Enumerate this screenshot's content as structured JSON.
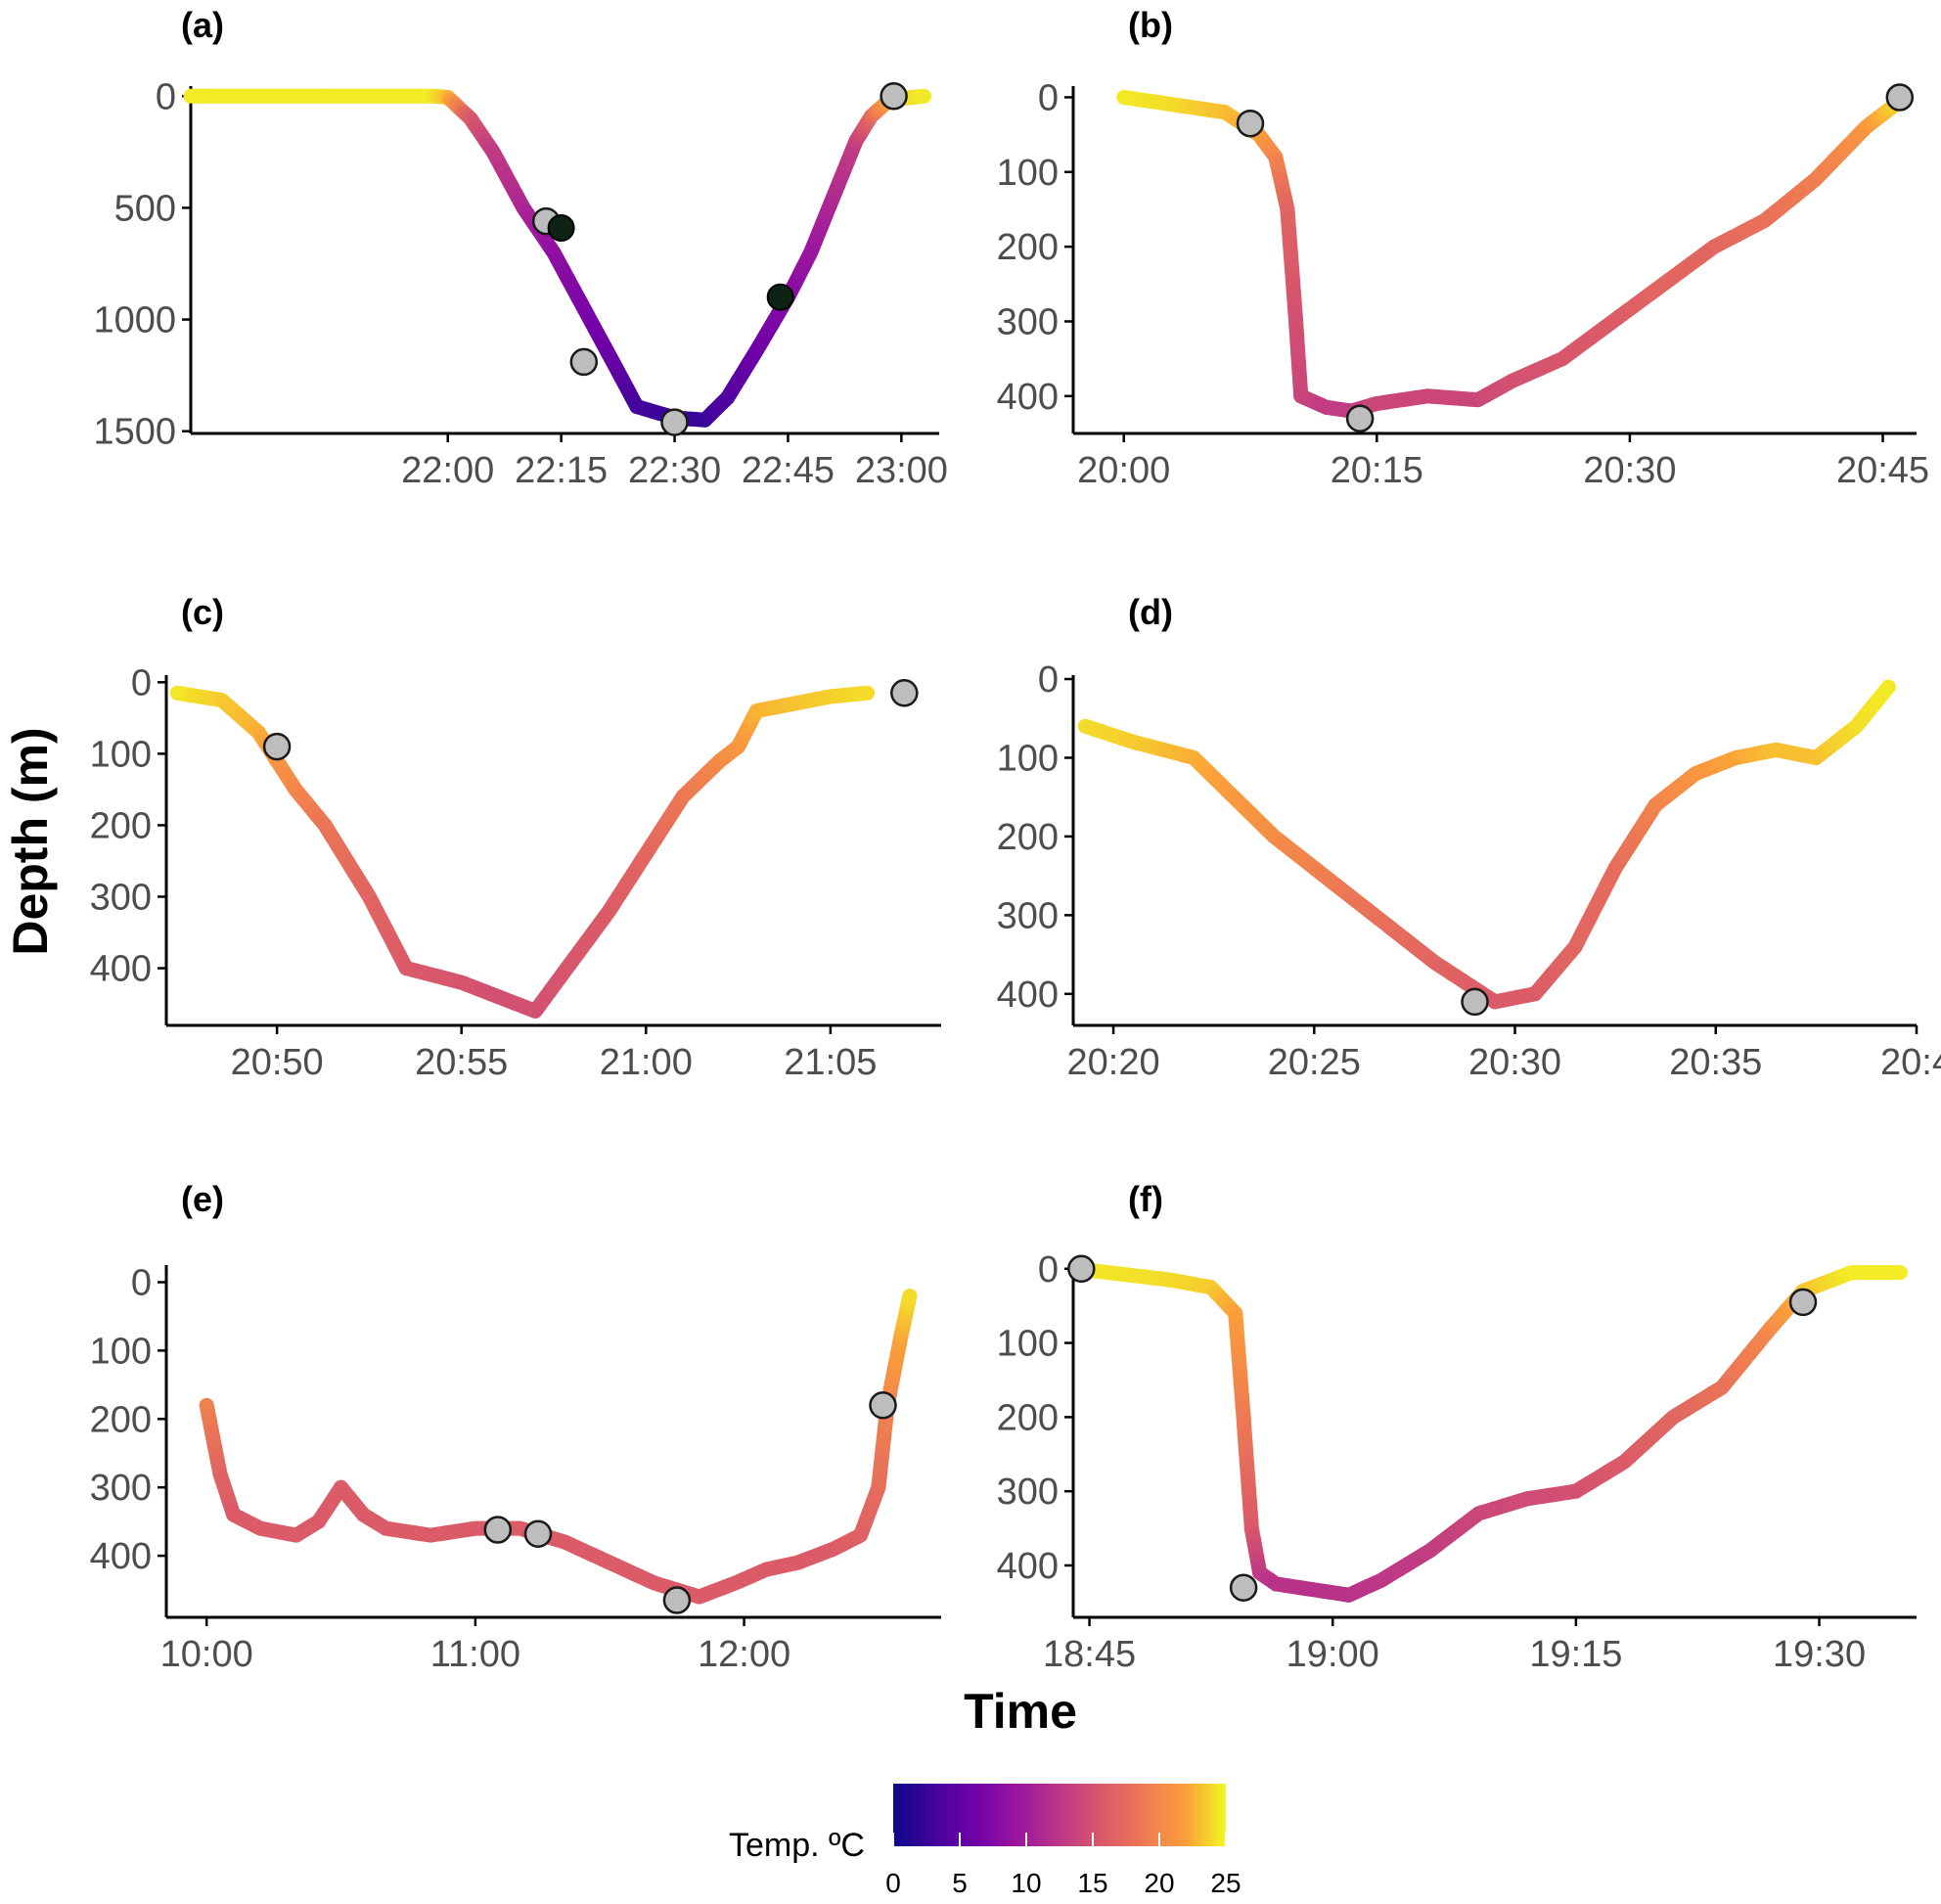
{
  "figure": {
    "xlabel": "Time",
    "ylabel": "Depth (m)"
  },
  "legend": {
    "title": "Temp. ºC",
    "ticks": [
      "0",
      "5",
      "10",
      "15",
      "20",
      "25"
    ]
  },
  "chart_data": [
    {
      "label": "(a)",
      "type": "line",
      "color_by": "temperature",
      "x_ticks": [
        "22:00",
        "22:15",
        "22:30",
        "22:45",
        "23:00"
      ],
      "x_tick_min": [
        1320,
        1335,
        1350,
        1365,
        1380
      ],
      "xlim": [
        1286,
        1385
      ],
      "y_ticks": [
        "0",
        "500",
        "1000",
        "1500"
      ],
      "y_tick_vals": [
        0,
        500,
        1000,
        1500
      ],
      "ylim": [
        -45,
        1510
      ],
      "series": [
        [
          1286,
          0,
          24.5
        ],
        [
          1300,
          0,
          24.5
        ],
        [
          1318,
          0,
          24.5
        ],
        [
          1320,
          5,
          23
        ],
        [
          1323,
          100,
          16
        ],
        [
          1326,
          250,
          13
        ],
        [
          1330,
          500,
          11
        ],
        [
          1334,
          700,
          8.5
        ],
        [
          1338,
          950,
          7
        ],
        [
          1342,
          1200,
          5.5
        ],
        [
          1345,
          1390,
          3.5
        ],
        [
          1350,
          1440,
          2.5
        ],
        [
          1354,
          1450,
          2.5
        ],
        [
          1357,
          1350,
          4
        ],
        [
          1361,
          1130,
          6
        ],
        [
          1365,
          900,
          7.5
        ],
        [
          1368,
          700,
          9
        ],
        [
          1371,
          450,
          11
        ],
        [
          1374,
          200,
          13
        ],
        [
          1376,
          90,
          17
        ],
        [
          1378,
          30,
          21
        ],
        [
          1380,
          10,
          23.5
        ],
        [
          1383,
          0,
          24.5
        ]
      ],
      "gray_markers": [
        [
          1333,
          560
        ],
        [
          1338,
          1190
        ],
        [
          1350,
          1460
        ],
        [
          1379,
          0
        ]
      ],
      "dark_markers": [
        [
          1335,
          590
        ],
        [
          1364,
          900
        ]
      ]
    },
    {
      "label": "(b)",
      "type": "line",
      "color_by": "temperature",
      "x_ticks": [
        "20:00",
        "20:15",
        "20:30",
        "20:45"
      ],
      "x_tick_min": [
        1200,
        1215,
        1230,
        1245
      ],
      "xlim": [
        1197,
        1247
      ],
      "y_ticks": [
        "0",
        "100",
        "200",
        "300",
        "400"
      ],
      "y_tick_vals": [
        0,
        100,
        200,
        300,
        400
      ],
      "ylim": [
        -15,
        450
      ],
      "series": [
        [
          1200,
          0,
          24.5
        ],
        [
          1203,
          10,
          24
        ],
        [
          1206,
          20,
          23
        ],
        [
          1208,
          50,
          22
        ],
        [
          1209,
          80,
          20
        ],
        [
          1209.7,
          150,
          17
        ],
        [
          1210.2,
          300,
          15
        ],
        [
          1210.5,
          400,
          14
        ],
        [
          1212,
          415,
          13
        ],
        [
          1213.5,
          420,
          13
        ],
        [
          1215,
          410,
          14
        ],
        [
          1218,
          400,
          14
        ],
        [
          1221,
          405,
          14
        ],
        [
          1223,
          380,
          15
        ],
        [
          1226,
          350,
          15.5
        ],
        [
          1229,
          300,
          16
        ],
        [
          1232,
          250,
          17
        ],
        [
          1235,
          200,
          17
        ],
        [
          1238,
          165,
          18
        ],
        [
          1241,
          110,
          19
        ],
        [
          1244,
          40,
          21
        ],
        [
          1246,
          5,
          24
        ]
      ],
      "gray_markers": [
        [
          1207.5,
          35
        ],
        [
          1214,
          430
        ],
        [
          1246,
          0
        ]
      ],
      "dark_markers": []
    },
    {
      "label": "(c)",
      "type": "line",
      "color_by": "temperature",
      "x_ticks": [
        "20:50",
        "20:55",
        "21:00",
        "21:05"
      ],
      "x_tick_min": [
        1250,
        1255,
        1260,
        1265
      ],
      "xlim": [
        1247,
        1268
      ],
      "y_ticks": [
        "0",
        "100",
        "200",
        "300",
        "400"
      ],
      "y_tick_vals": [
        0,
        100,
        200,
        300,
        400
      ],
      "ylim": [
        -10,
        480
      ],
      "series": [
        [
          1247.3,
          15,
          24.5
        ],
        [
          1248.5,
          25,
          23.5
        ],
        [
          1249.5,
          70,
          22.5
        ],
        [
          1250.5,
          150,
          20
        ],
        [
          1251.3,
          200,
          18.5
        ],
        [
          1252.5,
          300,
          17
        ],
        [
          1253.5,
          400,
          16
        ],
        [
          1255,
          420,
          15.5
        ],
        [
          1256,
          440,
          15
        ],
        [
          1257,
          460,
          15
        ],
        [
          1258,
          390,
          15.5
        ],
        [
          1259,
          320,
          16
        ],
        [
          1260,
          240,
          17
        ],
        [
          1261,
          160,
          18.5
        ],
        [
          1262,
          110,
          20
        ],
        [
          1262.5,
          90,
          21
        ],
        [
          1263,
          40,
          22.5
        ],
        [
          1264,
          30,
          23
        ],
        [
          1265,
          20,
          23.5
        ],
        [
          1266,
          15,
          24
        ]
      ],
      "gray_markers": [
        [
          1250,
          90
        ],
        [
          1267,
          15
        ]
      ],
      "dark_markers": []
    },
    {
      "label": "(d)",
      "type": "line",
      "color_by": "temperature",
      "x_ticks": [
        "20:20",
        "20:25",
        "20:30",
        "20:35",
        "20:4"
      ],
      "x_tick_min": [
        1220,
        1225,
        1230,
        1235,
        1240
      ],
      "xlim": [
        1219,
        1240
      ],
      "y_ticks": [
        "0",
        "100",
        "200",
        "300",
        "400"
      ],
      "y_tick_vals": [
        0,
        100,
        200,
        300,
        400
      ],
      "ylim": [
        -5,
        440
      ],
      "series": [
        [
          1219.3,
          60,
          24
        ],
        [
          1220.5,
          80,
          23.5
        ],
        [
          1222,
          100,
          22.5
        ],
        [
          1224,
          200,
          20.5
        ],
        [
          1226,
          280,
          18.5
        ],
        [
          1228,
          360,
          17
        ],
        [
          1229.5,
          410,
          16
        ],
        [
          1230.5,
          400,
          16
        ],
        [
          1231.5,
          340,
          17
        ],
        [
          1232.5,
          240,
          17.5
        ],
        [
          1233.5,
          160,
          19.5
        ],
        [
          1234.5,
          120,
          21
        ],
        [
          1235.5,
          100,
          22
        ],
        [
          1236.5,
          90,
          23
        ],
        [
          1237.5,
          100,
          23
        ],
        [
          1238.5,
          60,
          24
        ],
        [
          1239.3,
          10,
          24.5
        ]
      ],
      "gray_markers": [
        [
          1229,
          410
        ]
      ],
      "dark_markers": []
    },
    {
      "label": "(e)",
      "type": "line",
      "color_by": "temperature",
      "x_ticks": [
        "10:00",
        "11:00",
        "12:00"
      ],
      "x_tick_min": [
        600,
        660,
        720
      ],
      "xlim": [
        591,
        764
      ],
      "y_ticks": [
        "0",
        "100",
        "200",
        "300",
        "400"
      ],
      "y_tick_vals": [
        0,
        100,
        200,
        300,
        400
      ],
      "ylim": [
        -25,
        490
      ],
      "series": [
        [
          600,
          180,
          19.5
        ],
        [
          603,
          280,
          17
        ],
        [
          606,
          340,
          16
        ],
        [
          612,
          360,
          16
        ],
        [
          620,
          370,
          16
        ],
        [
          625,
          350,
          16
        ],
        [
          630,
          300,
          16
        ],
        [
          635,
          340,
          16
        ],
        [
          640,
          360,
          16
        ],
        [
          650,
          370,
          16
        ],
        [
          660,
          360,
          16
        ],
        [
          665,
          360,
          16
        ],
        [
          670,
          360,
          16
        ],
        [
          680,
          380,
          16
        ],
        [
          690,
          410,
          16
        ],
        [
          700,
          440,
          16
        ],
        [
          710,
          460,
          16
        ],
        [
          718,
          440,
          16
        ],
        [
          725,
          420,
          16
        ],
        [
          732,
          410,
          16
        ],
        [
          740,
          390,
          16
        ],
        [
          746,
          370,
          16.5
        ],
        [
          750,
          300,
          17.5
        ],
        [
          752,
          180,
          19.5
        ],
        [
          755,
          80,
          22
        ],
        [
          757,
          20,
          24
        ]
      ],
      "gray_markers": [
        [
          665,
          362
        ],
        [
          674,
          368
        ],
        [
          705,
          465
        ],
        [
          751,
          180
        ]
      ],
      "dark_markers": []
    },
    {
      "label": "(f)",
      "type": "line",
      "color_by": "temperature",
      "x_ticks": [
        "18:45",
        "19:00",
        "19:15",
        "19:30"
      ],
      "x_tick_min": [
        1125,
        1140,
        1155,
        1170
      ],
      "xlim": [
        1124,
        1176
      ],
      "y_ticks": [
        "0",
        "100",
        "200",
        "300",
        "400"
      ],
      "y_tick_vals": [
        0,
        100,
        200,
        300,
        400
      ],
      "ylim": [
        -5,
        470
      ],
      "series": [
        [
          1124.2,
          0,
          24.5
        ],
        [
          1130,
          15,
          24
        ],
        [
          1132.5,
          25,
          23.5
        ],
        [
          1134,
          60,
          22
        ],
        [
          1134.5,
          200,
          19
        ],
        [
          1135,
          350,
          16
        ],
        [
          1135.5,
          410,
          13
        ],
        [
          1136.5,
          425,
          12
        ],
        [
          1138,
          430,
          12
        ],
        [
          1141,
          440,
          12
        ],
        [
          1143,
          420,
          12.5
        ],
        [
          1146,
          380,
          13
        ],
        [
          1149,
          330,
          14
        ],
        [
          1152,
          310,
          14.5
        ],
        [
          1155,
          300,
          15
        ],
        [
          1158,
          260,
          16
        ],
        [
          1161,
          200,
          17
        ],
        [
          1164,
          160,
          18
        ],
        [
          1167,
          80,
          20
        ],
        [
          1169,
          30,
          23
        ],
        [
          1172,
          5,
          24.5
        ],
        [
          1175,
          5,
          24.5
        ]
      ],
      "gray_markers": [
        [
          1124.5,
          0
        ],
        [
          1134.5,
          430
        ],
        [
          1169,
          45
        ]
      ],
      "dark_markers": []
    }
  ]
}
